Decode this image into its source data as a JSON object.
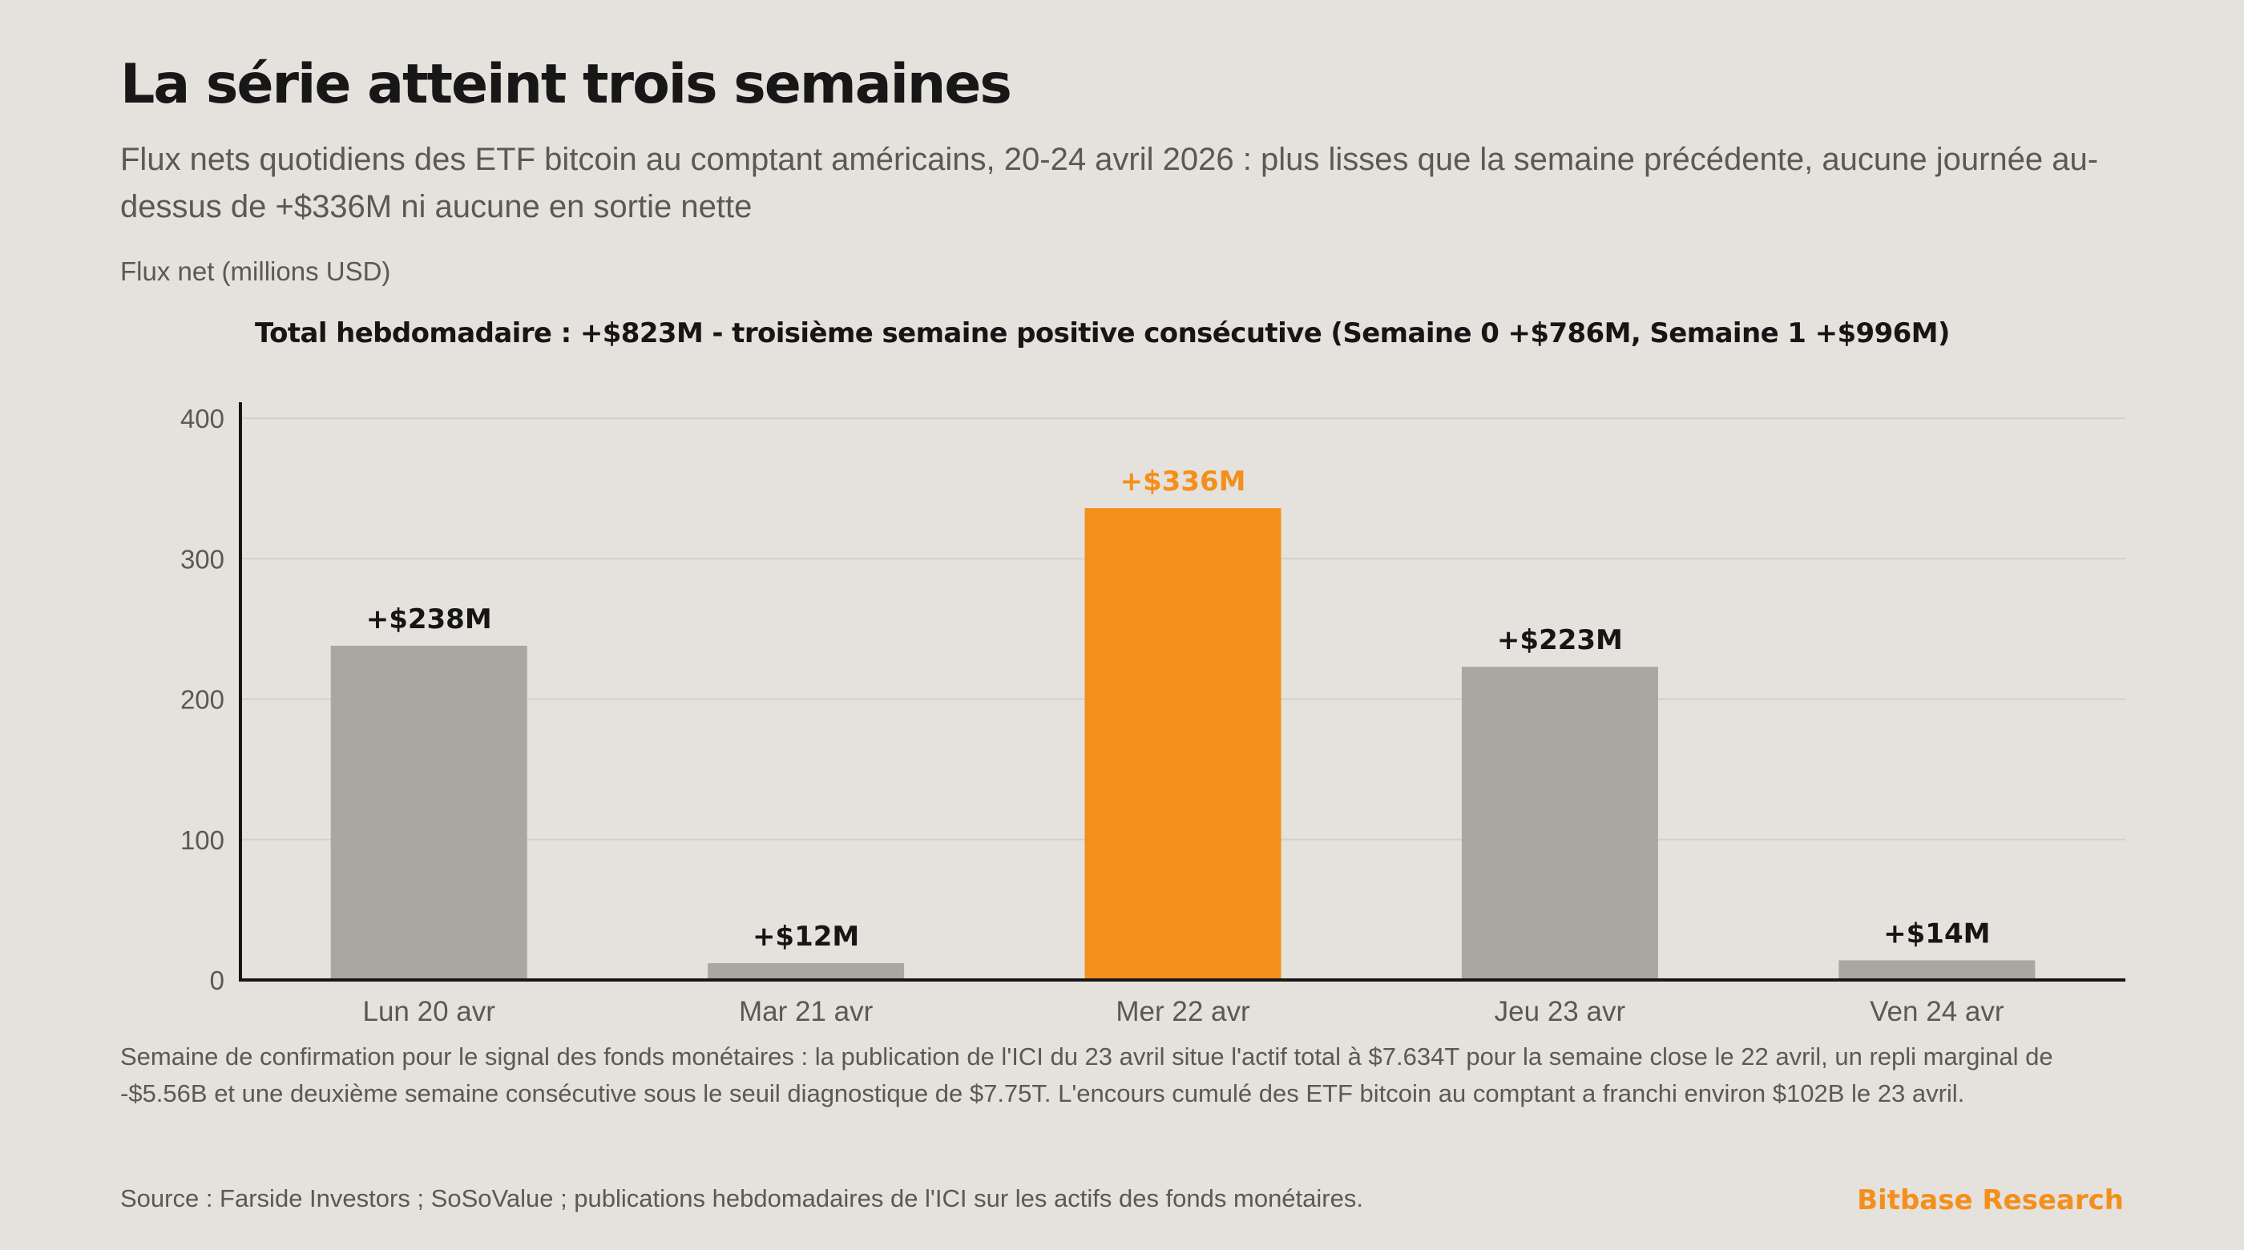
{
  "title": "La série atteint trois semaines",
  "subtitle": "Flux nets quotidiens des ETF bitcoin au comptant américains, 20-24 avril 2026 : plus lisses que la semaine précédente, aucune journée au-dessus de +$336M ni aucune en sortie nette",
  "footnote": "Semaine de confirmation pour le signal des fonds monétaires : la publication de l'ICI du 23 avril situe l'actif total à $7.634T pour la semaine close le 22 avril, un repli marginal de -$5.56B et une deuxième semaine consécutive sous le seuil diagnostique de $7.75T. L'encours cumulé des ETF bitcoin au comptant a franchi environ $102B le 23 avril.",
  "source": "Source : Farside Investors ; SoSoValue ; publications hebdomadaires de l'ICI sur les actifs des fonds monétaires.",
  "brand": "Bitbase Research",
  "chart_data": {
    "type": "bar",
    "ylabel": "Flux net (millions USD)",
    "annotation": "Total hebdomadaire : +$823M - troisième semaine positive consécutive (Semaine 0 +$786M, Semaine 1 +$996M)",
    "categories": [
      "Lun 20 avr",
      "Mar 21 avr",
      "Mer 22 avr",
      "Jeu 23 avr",
      "Ven 24 avr"
    ],
    "values": [
      238,
      12,
      336,
      223,
      14
    ],
    "data_labels": [
      "+$238M",
      "+$12M",
      "+$336M",
      "+$223M",
      "+$14M"
    ],
    "highlight_index": 2,
    "ylim": [
      0,
      400
    ],
    "yticks": [
      0,
      100,
      200,
      300,
      400
    ],
    "grid": true,
    "colors": {
      "bar": "#aaa6a0",
      "highlight": "#f48f1b",
      "label": "#161616",
      "grid": "#d3cfca",
      "axis": "#161616",
      "tick_label": "#5b5855"
    }
  }
}
